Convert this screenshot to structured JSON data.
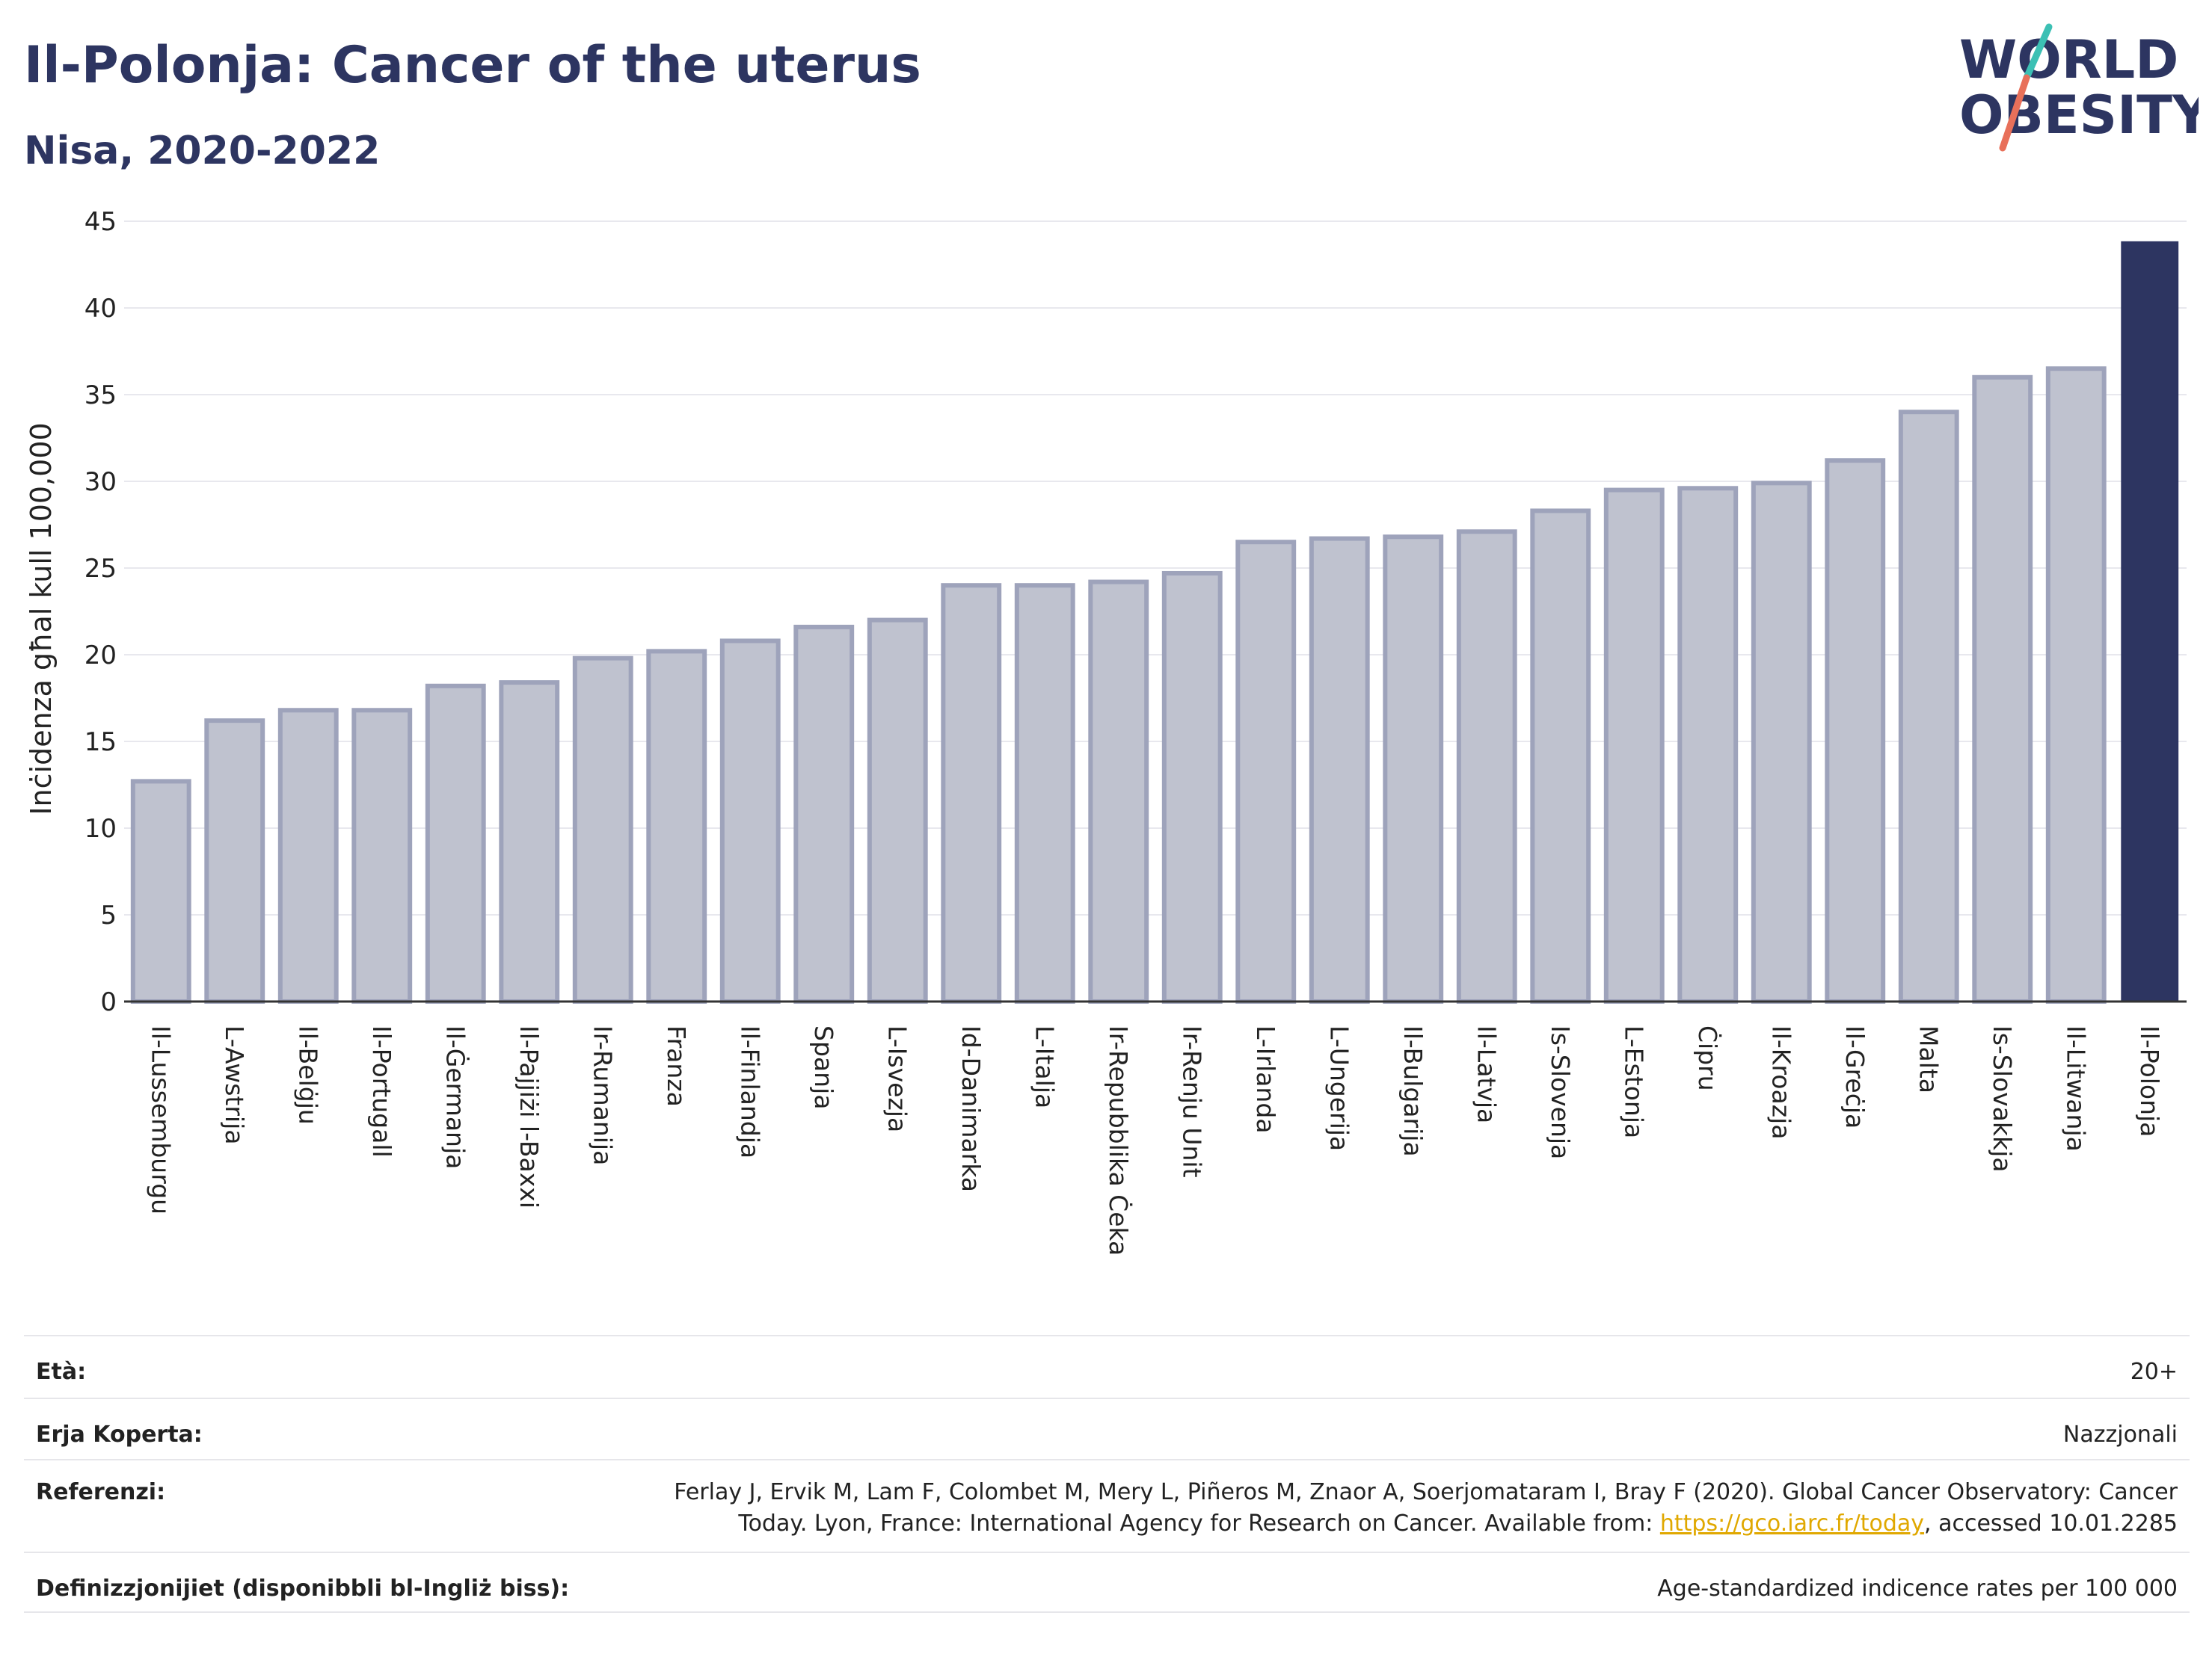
{
  "header": {
    "title": "Il-Polonja: Cancer of the uterus",
    "subtitle": "Nisa, 2020-2022"
  },
  "logo": {
    "line1": "WORLD",
    "line2": "OBESITY",
    "accent_colors": [
      "#3cc0b4",
      "#e8705a"
    ]
  },
  "colors": {
    "bar_default": "#bfc2cf",
    "bar_border": "#9ea3bb",
    "bar_highlight": "#2d3561",
    "text": "#2d3561",
    "link": "#e0a800"
  },
  "chart_data": {
    "type": "bar",
    "title": "Il-Polonja: Cancer of the uterus",
    "subtitle": "Nisa, 2020-2022",
    "ylabel": "Inċidenza għal kull 100,000",
    "xlabel": "",
    "ylim": [
      0,
      45
    ],
    "yticks": [
      0,
      5,
      10,
      15,
      20,
      25,
      30,
      35,
      40,
      45
    ],
    "grid": true,
    "highlight": "Il-Polonja",
    "categories": [
      "Il-Lussemburgu",
      "L-Awstrija",
      "Il-Belġju",
      "Il-Portugall",
      "Il-Ġermanja",
      "Il-Pajjiżi l-Baxxi",
      "Ir-Rumanija",
      "Franza",
      "Il-Finlandja",
      "Spanja",
      "L-Isvezja",
      "Id-Danimarka",
      "L-Italja",
      "Ir-Repubblika Ċeka",
      "Ir-Renju Unit",
      "L-Irlanda",
      "L-Ungerija",
      "Il-Bulgarija",
      "Il-Latvja",
      "Is-Slovenja",
      "L-Estonja",
      "Ċipru",
      "Il-Kroazja",
      "Il-Greċja",
      "Malta",
      "Is-Slovakkja",
      "Il-Litwanja",
      "Il-Polonja"
    ],
    "values": [
      12.7,
      16.2,
      16.8,
      16.8,
      18.2,
      18.4,
      19.8,
      20.2,
      20.8,
      21.6,
      22.0,
      24.0,
      24.0,
      24.2,
      24.7,
      26.5,
      26.7,
      26.8,
      27.1,
      28.3,
      29.5,
      29.6,
      29.9,
      31.2,
      34.0,
      36.0,
      36.5,
      43.8
    ]
  },
  "info": {
    "rows": [
      {
        "label": "Età:",
        "value": "20+"
      },
      {
        "label": "Erja Koperta:",
        "value": "Nazzjonali"
      },
      {
        "label": "Referenzi:",
        "value_line1": "Ferlay J, Ervik M, Lam F, Colombet M, Mery L, Piñeros M, Znaor A, Soerjomataram I, Bray F (2020). Global Cancer Observatory: Cancer",
        "value_pre": "Today. Lyon, France: International Agency for Research on Cancer. Available from: ",
        "link": "https://gco.iarc.fr/today",
        "value_post": ", accessed 10.01.2285"
      },
      {
        "label": "Definizzjonijiet (disponibbli bl-Ingliż biss):",
        "value": "Age-standardized indicence rates per 100 000"
      }
    ]
  }
}
